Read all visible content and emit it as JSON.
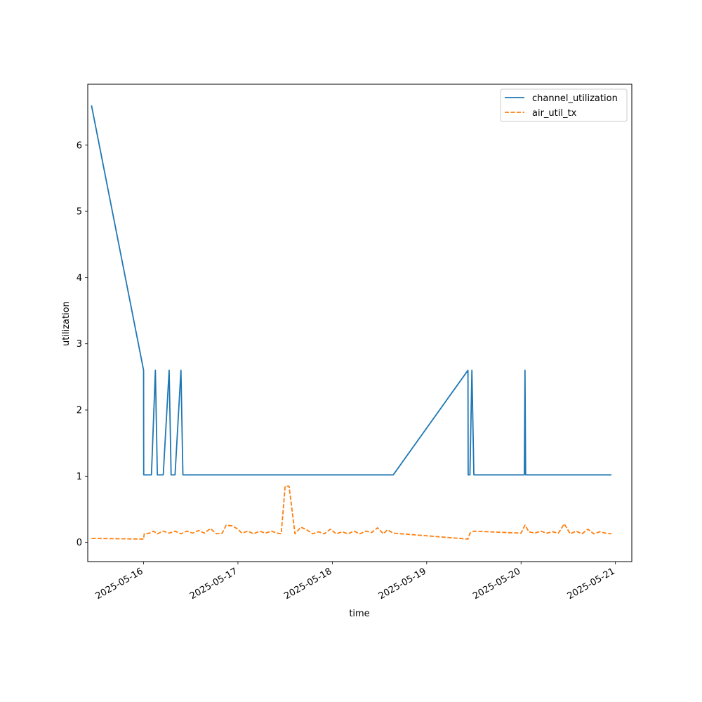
{
  "chart_data": {
    "type": "line",
    "title": "",
    "xlabel": "time",
    "ylabel": "utilization",
    "xlim": [
      "2025-05-15 09:48",
      "2025-05-21 04:10"
    ],
    "ylim": [
      -0.29,
      6.92
    ],
    "grid": false,
    "legend_position": "top-right",
    "x_ticks": [
      "2025-05-16",
      "2025-05-17",
      "2025-05-18",
      "2025-05-19",
      "2025-05-20",
      "2025-05-21"
    ],
    "y_ticks": [
      0,
      1,
      2,
      3,
      4,
      5,
      6
    ],
    "series": [
      {
        "name": "channel_utilization",
        "color": "#1f77b4",
        "dash": "solid",
        "x": [
          "2025-05-15 10:45",
          "2025-05-16 00:00",
          "2025-05-16 00:02",
          "2025-05-16 02:00",
          "2025-05-16 03:00",
          "2025-05-16 03:30",
          "2025-05-16 05:00",
          "2025-05-16 06:30",
          "2025-05-16 07:00",
          "2025-05-16 08:00",
          "2025-05-16 09:30",
          "2025-05-16 10:00",
          "2025-05-16 12:00",
          "2025-05-18 15:30",
          "2025-05-19 10:30",
          "2025-05-19 10:33",
          "2025-05-19 11:00",
          "2025-05-19 11:30",
          "2025-05-19 12:00",
          "2025-05-20 00:30",
          "2025-05-20 00:50",
          "2025-05-20 01:00",
          "2025-05-20 01:10",
          "2025-05-20 23:00"
        ],
        "values": [
          6.6,
          2.6,
          1.02,
          1.02,
          2.6,
          1.02,
          1.02,
          2.6,
          1.02,
          1.02,
          2.6,
          1.02,
          1.02,
          1.02,
          2.6,
          1.02,
          1.02,
          2.6,
          1.02,
          1.02,
          1.02,
          2.6,
          1.02,
          1.02
        ]
      },
      {
        "name": "air_util_tx",
        "color": "#ff7f0e",
        "dash": "dashed",
        "x": [
          "2025-05-15 10:45",
          "2025-05-16 00:00",
          "2025-05-16 00:10",
          "2025-05-16 01:30",
          "2025-05-16 02:30",
          "2025-05-16 03:30",
          "2025-05-16 05:00",
          "2025-05-16 06:30",
          "2025-05-16 08:00",
          "2025-05-16 09:30",
          "2025-05-16 11:00",
          "2025-05-16 12:30",
          "2025-05-16 14:00",
          "2025-05-16 15:30",
          "2025-05-16 17:00",
          "2025-05-16 18:30",
          "2025-05-16 20:00",
          "2025-05-16 21:00",
          "2025-05-16 22:30",
          "2025-05-17 00:00",
          "2025-05-17 01:00",
          "2025-05-17 02:30",
          "2025-05-17 04:00",
          "2025-05-17 05:30",
          "2025-05-17 07:00",
          "2025-05-17 08:30",
          "2025-05-17 10:00",
          "2025-05-17 11:00",
          "2025-05-17 12:00",
          "2025-05-17 13:00",
          "2025-05-17 14:30",
          "2025-05-17 16:00",
          "2025-05-17 17:30",
          "2025-05-17 19:00",
          "2025-05-17 20:30",
          "2025-05-17 22:00",
          "2025-05-17 23:30",
          "2025-05-18 01:00",
          "2025-05-18 02:30",
          "2025-05-18 04:00",
          "2025-05-18 05:30",
          "2025-05-18 07:00",
          "2025-05-18 08:30",
          "2025-05-18 10:00",
          "2025-05-18 11:30",
          "2025-05-18 13:00",
          "2025-05-18 14:00",
          "2025-05-18 15:30",
          "2025-05-19 10:30",
          "2025-05-19 11:00",
          "2025-05-19 12:00",
          "2025-05-20 00:00",
          "2025-05-20 01:00",
          "2025-05-20 02:00",
          "2025-05-20 03:30",
          "2025-05-20 05:00",
          "2025-05-20 06:30",
          "2025-05-20 08:00",
          "2025-05-20 09:30",
          "2025-05-20 11:00",
          "2025-05-20 12:30",
          "2025-05-20 14:00",
          "2025-05-20 15:30",
          "2025-05-20 17:00",
          "2025-05-20 18:30",
          "2025-05-20 20:00",
          "2025-05-20 21:30",
          "2025-05-20 23:00"
        ],
        "values": [
          0.06,
          0.05,
          0.13,
          0.14,
          0.17,
          0.13,
          0.17,
          0.14,
          0.17,
          0.13,
          0.17,
          0.14,
          0.18,
          0.14,
          0.21,
          0.13,
          0.14,
          0.26,
          0.25,
          0.2,
          0.14,
          0.17,
          0.13,
          0.17,
          0.14,
          0.17,
          0.14,
          0.13,
          0.85,
          0.85,
          0.13,
          0.23,
          0.19,
          0.13,
          0.16,
          0.13,
          0.2,
          0.13,
          0.16,
          0.13,
          0.17,
          0.13,
          0.17,
          0.15,
          0.22,
          0.13,
          0.19,
          0.14,
          0.05,
          0.14,
          0.17,
          0.14,
          0.26,
          0.16,
          0.14,
          0.17,
          0.14,
          0.16,
          0.14,
          0.28,
          0.13,
          0.17,
          0.13,
          0.2,
          0.13,
          0.16,
          0.14,
          0.13
        ]
      }
    ]
  }
}
